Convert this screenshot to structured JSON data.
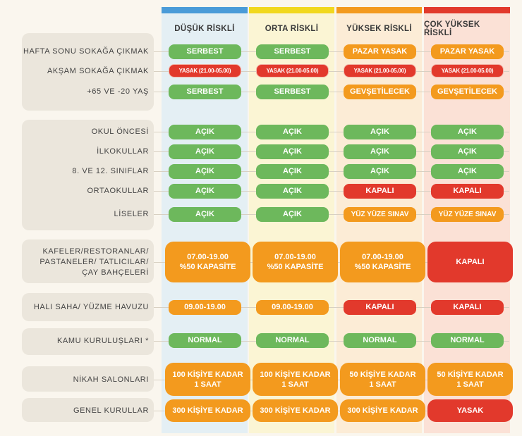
{
  "colors": {
    "low": "#4a9bd8",
    "medium": "#f1d81e",
    "high": "#f39a1e",
    "very_high": "#e2392c",
    "green": "#6db85c",
    "orange": "#f39a1e",
    "red": "#e2392c"
  },
  "columns": [
    "DÜŞÜK RİSKLİ",
    "ORTA RİSKLİ",
    "YÜKSEK RİSKLİ",
    "ÇOK YÜKSEK RİSKLİ"
  ],
  "rows": [
    {
      "label": [
        "HAFTA SONU SOKAĞA ÇIKMAK"
      ],
      "cells": [
        "SERBEST",
        "SERBEST",
        "PAZAR  YASAK",
        "PAZAR  YASAK"
      ]
    },
    {
      "label": [
        "AKŞAM SOKAĞA ÇIKMAK"
      ],
      "cells": [
        "YASAK (21.00-05.00)",
        "YASAK (21.00-05.00)",
        "YASAK (21.00-05.00)",
        "YASAK (21.00-05.00)"
      ]
    },
    {
      "label": [
        "+65 VE -20 YAŞ"
      ],
      "cells": [
        "SERBEST",
        "SERBEST",
        "GEVŞETİLECEK",
        "GEVŞETİLECEK"
      ]
    },
    {
      "label": [
        "OKUL ÖNCESİ"
      ],
      "cells": [
        "AÇIK",
        "AÇIK",
        "AÇIK",
        "AÇIK"
      ]
    },
    {
      "label": [
        "İLKOKULLAR"
      ],
      "cells": [
        "AÇIK",
        "AÇIK",
        "AÇIK",
        "AÇIK"
      ]
    },
    {
      "label": [
        "8. VE 12. SINIFLAR"
      ],
      "cells": [
        "AÇIK",
        "AÇIK",
        "AÇIK",
        "AÇIK"
      ]
    },
    {
      "label": [
        "ORTAOKULLAR"
      ],
      "cells": [
        "AÇIK",
        "AÇIK",
        "KAPALI",
        "KAPALI"
      ]
    },
    {
      "label": [
        "LİSELER"
      ],
      "cells": [
        "AÇIK",
        "AÇIK",
        "YÜZ YÜZE SINAV",
        "YÜZ YÜZE SINAV"
      ]
    },
    {
      "label": [
        "KAFELER/RESTORANLAR/",
        "PASTANELER/ TATLICILAR/",
        "ÇAY BAHÇELERİ"
      ],
      "cells": [
        [
          "07.00-19.00",
          "%50 KAPASİTE"
        ],
        [
          "07.00-19.00",
          "%50 KAPASİTE"
        ],
        [
          "07.00-19.00",
          "%50 KAPASİTE"
        ],
        [
          "KAPALI"
        ]
      ]
    },
    {
      "label": [
        "HALI SAHA/ YÜZME HAVUZU"
      ],
      "cells": [
        "09.00-19.00",
        "09.00-19.00",
        "KAPALI",
        "KAPALI"
      ]
    },
    {
      "label": [
        "KAMU KURULUŞLARI *"
      ],
      "cells": [
        "NORMAL",
        "NORMAL",
        "NORMAL",
        "NORMAL"
      ]
    },
    {
      "label": [
        "NİKAH SALONLARI"
      ],
      "cells": [
        [
          "100 KİŞİYE KADAR",
          "1 SAAT"
        ],
        [
          "100 KİŞİYE KADAR",
          "1 SAAT"
        ],
        [
          "50 KİŞİYE KADAR",
          "1 SAAT"
        ],
        [
          "50 KİŞİYE KADAR",
          "1 SAAT"
        ]
      ]
    },
    {
      "label": [
        "GENEL KURULLAR"
      ],
      "cells": [
        [
          "300 KİŞİYE KADAR"
        ],
        [
          "300 KİŞİYE KADAR"
        ],
        [
          "300 KİŞİYE KADAR"
        ],
        [
          "YASAK"
        ]
      ]
    }
  ]
}
